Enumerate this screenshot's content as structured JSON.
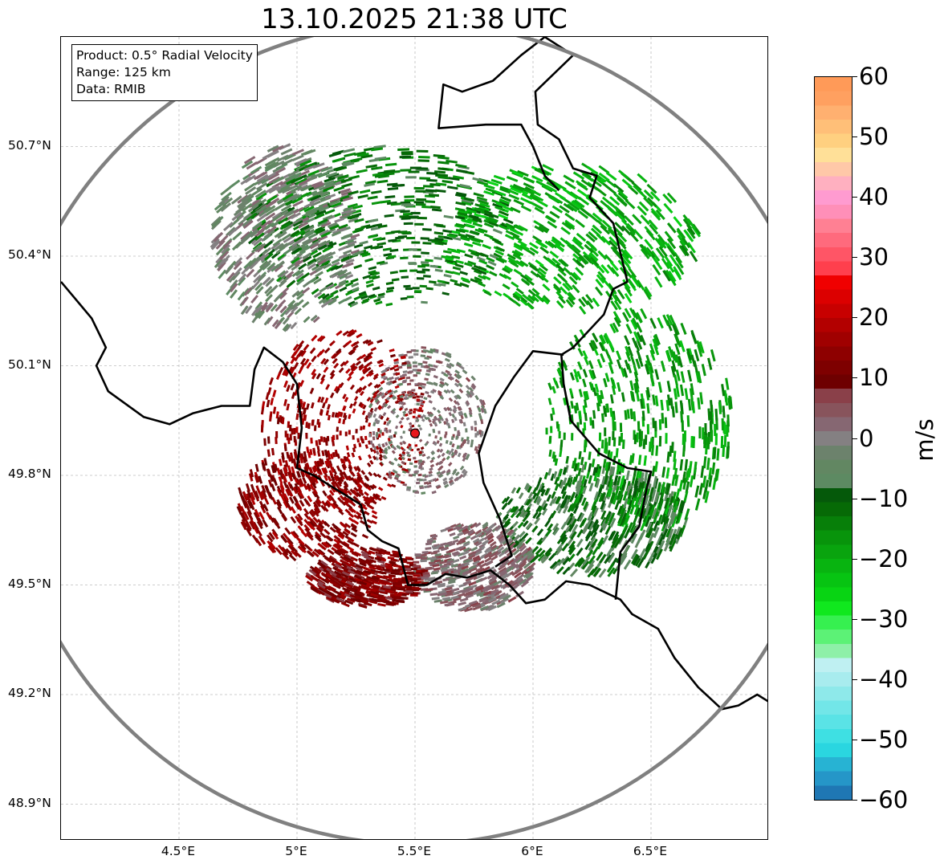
{
  "title": "13.10.2025 21:38 UTC",
  "info": {
    "product": "Product: 0.5° Radial Velocity",
    "range": "Range: 125 km",
    "data": "Data: RMIB"
  },
  "map": {
    "lon_range": [
      4.0,
      7.0
    ],
    "lat_range": [
      48.8,
      51.0
    ],
    "lat_ticks": [
      {
        "value": 50.7,
        "label": "50.7°N"
      },
      {
        "value": 50.4,
        "label": "50.4°N"
      },
      {
        "value": 50.1,
        "label": "50.1°N"
      },
      {
        "value": 49.8,
        "label": "49.8°N"
      },
      {
        "value": 49.5,
        "label": "49.5°N"
      },
      {
        "value": 49.2,
        "label": "49.2°N"
      },
      {
        "value": 48.9,
        "label": "48.9°N"
      }
    ],
    "lon_ticks": [
      {
        "value": 4.5,
        "label": "4.5°E"
      },
      {
        "value": 5.0,
        "label": "5°E"
      },
      {
        "value": 5.5,
        "label": "5.5°E"
      },
      {
        "value": 6.0,
        "label": "6°E"
      },
      {
        "value": 6.5,
        "label": "6.5°E"
      }
    ],
    "radar_site": {
      "lon": 5.5,
      "lat": 49.915
    },
    "range_km": 125,
    "range_ring_color": "#808080",
    "site_color": "#e8161b"
  },
  "colorbar": {
    "unit": "m/s",
    "min": -60,
    "max": 60,
    "ticks": [
      {
        "value": 60,
        "label": "60"
      },
      {
        "value": 50,
        "label": "50"
      },
      {
        "value": 40,
        "label": "40"
      },
      {
        "value": 30,
        "label": "30"
      },
      {
        "value": 20,
        "label": "20"
      },
      {
        "value": 10,
        "label": "10"
      },
      {
        "value": 0,
        "label": "0"
      },
      {
        "value": -10,
        "label": "−10"
      },
      {
        "value": -20,
        "label": "−20"
      },
      {
        "value": -30,
        "label": "−30"
      },
      {
        "value": -40,
        "label": "−40"
      },
      {
        "value": -50,
        "label": "−50"
      },
      {
        "value": -60,
        "label": "−60"
      }
    ],
    "colors": [
      "#1f77b4",
      "#2596c8",
      "#27b3d3",
      "#2ad6e0",
      "#3ee0e3",
      "#5ae3e6",
      "#72e6e8",
      "#8ee9ea",
      "#a8ecee",
      "#bff0f2",
      "#8ef0a8",
      "#5cf276",
      "#36f050",
      "#10e81e",
      "#08d413",
      "#07c412",
      "#08b410",
      "#09a40e",
      "#08940b",
      "#077f09",
      "#066a06",
      "#05590a",
      "#5d8a62",
      "#628762",
      "#6c826c",
      "#848082",
      "#866772",
      "#88545c",
      "#8a4049",
      "#6e0000",
      "#7e0000",
      "#8e0000",
      "#a00000",
      "#b30000",
      "#c80000",
      "#dc0000",
      "#f00000",
      "#ff3f4d",
      "#ff5566",
      "#ff6a7d",
      "#ff8093",
      "#ff8fb8",
      "#ff9bd0",
      "#ffb0c0",
      "#ffc8a8",
      "#ffe098",
      "#ffd080",
      "#ffbf78",
      "#ffb070",
      "#ffa060",
      "#ff9a58"
    ]
  },
  "velocity_regions": [
    {
      "name": "receding-northwest",
      "lon": 5.35,
      "lat": 50.48,
      "radius_lon": 0.55,
      "radius_lat": 0.22,
      "velocity": -12
    },
    {
      "name": "receding-northeast",
      "lon": 6.15,
      "lat": 50.45,
      "radius_lon": 0.55,
      "radius_lat": 0.2,
      "velocity": -20
    },
    {
      "name": "receding-east",
      "lon": 6.45,
      "lat": 49.95,
      "radius_lon": 0.4,
      "radius_lat": 0.3,
      "velocity": -18
    },
    {
      "name": "receding-southeast",
      "lon": 6.25,
      "lat": 49.68,
      "radius_lon": 0.4,
      "radius_lat": 0.15,
      "velocity": -9
    },
    {
      "name": "near-zero-west",
      "lon": 4.95,
      "lat": 50.45,
      "radius_lon": 0.3,
      "radius_lat": 0.25,
      "velocity": -2
    },
    {
      "name": "near-zero-center",
      "lon": 5.55,
      "lat": 49.95,
      "radius_lon": 0.25,
      "radius_lat": 0.2,
      "velocity": 1
    },
    {
      "name": "approaching-west",
      "lon": 5.2,
      "lat": 49.95,
      "radius_lon": 0.35,
      "radius_lat": 0.25,
      "velocity": 15
    },
    {
      "name": "approaching-southwest",
      "lon": 5.05,
      "lat": 49.72,
      "radius_lon": 0.3,
      "radius_lat": 0.15,
      "velocity": 14
    },
    {
      "name": "approaching-south",
      "lon": 5.3,
      "lat": 49.52,
      "radius_lon": 0.25,
      "radius_lat": 0.08,
      "velocity": 12
    },
    {
      "name": "mixed-southcentral",
      "lon": 5.75,
      "lat": 49.55,
      "radius_lon": 0.25,
      "radius_lat": 0.12,
      "velocity": 2
    }
  ],
  "borders": [
    {
      "name": "border-france-west",
      "points": [
        [
          4.0,
          50.33
        ],
        [
          4.13,
          50.23
        ],
        [
          4.19,
          50.15
        ],
        [
          4.15,
          50.1
        ],
        [
          4.2,
          50.03
        ],
        [
          4.35,
          49.96
        ],
        [
          4.46,
          49.94
        ],
        [
          4.56,
          49.97
        ],
        [
          4.68,
          49.99
        ],
        [
          4.8,
          49.99
        ],
        [
          4.82,
          50.09
        ],
        [
          4.86,
          50.15
        ],
        [
          4.94,
          50.11
        ],
        [
          5.0,
          50.05
        ],
        [
          5.02,
          49.93
        ],
        [
          5.0,
          49.82
        ],
        [
          5.07,
          49.8
        ],
        [
          5.17,
          49.76
        ],
        [
          5.27,
          49.72
        ],
        [
          5.3,
          49.65
        ],
        [
          5.36,
          49.62
        ],
        [
          5.43,
          49.6
        ],
        [
          5.47,
          49.5
        ],
        [
          5.55,
          49.5
        ],
        [
          5.63,
          49.53
        ],
        [
          5.72,
          49.52
        ],
        [
          5.82,
          49.54
        ],
        [
          5.9,
          49.5
        ],
        [
          5.97,
          49.45
        ],
        [
          6.05,
          49.46
        ],
        [
          6.14,
          49.51
        ],
        [
          6.24,
          49.5
        ],
        [
          6.37,
          49.46
        ],
        [
          6.42,
          49.42
        ],
        [
          6.53,
          49.38
        ],
        [
          6.6,
          49.3
        ],
        [
          6.7,
          49.22
        ],
        [
          6.8,
          49.16
        ],
        [
          6.87,
          49.17
        ],
        [
          6.95,
          49.2
        ],
        [
          7.0,
          49.18
        ]
      ]
    },
    {
      "name": "border-germany",
      "points": [
        [
          6.05,
          51.0
        ],
        [
          6.17,
          50.95
        ],
        [
          6.01,
          50.85
        ],
        [
          6.02,
          50.76
        ],
        [
          6.11,
          50.72
        ],
        [
          6.17,
          50.64
        ],
        [
          6.27,
          50.62
        ],
        [
          6.24,
          50.56
        ],
        [
          6.34,
          50.49
        ],
        [
          6.4,
          50.33
        ],
        [
          6.34,
          50.31
        ],
        [
          6.3,
          50.24
        ],
        [
          6.17,
          50.15
        ],
        [
          6.12,
          50.13
        ],
        [
          6.13,
          50.05
        ],
        [
          6.16,
          49.95
        ],
        [
          6.28,
          49.86
        ],
        [
          6.4,
          49.82
        ],
        [
          6.5,
          49.81
        ],
        [
          6.48,
          49.76
        ],
        [
          6.45,
          49.66
        ],
        [
          6.37,
          49.59
        ],
        [
          6.35,
          49.46
        ]
      ]
    },
    {
      "name": "border-luxembourg-west",
      "points": [
        [
          6.05,
          51.0
        ],
        [
          5.95,
          50.95
        ],
        [
          5.83,
          50.88
        ],
        [
          5.7,
          50.85
        ],
        [
          5.62,
          50.87
        ],
        [
          5.6,
          50.75
        ],
        [
          5.8,
          50.76
        ],
        [
          5.95,
          50.76
        ],
        [
          6.0,
          50.7
        ],
        [
          6.05,
          50.62
        ],
        [
          6.11,
          50.58
        ]
      ]
    },
    {
      "name": "border-luxembourg",
      "points": [
        [
          5.84,
          49.55
        ],
        [
          5.91,
          49.58
        ],
        [
          5.86,
          49.68
        ],
        [
          5.79,
          49.78
        ],
        [
          5.77,
          49.86
        ],
        [
          5.84,
          49.99
        ],
        [
          5.92,
          50.07
        ],
        [
          6.0,
          50.14
        ],
        [
          6.13,
          50.13
        ]
      ]
    }
  ],
  "labels_unused": []
}
